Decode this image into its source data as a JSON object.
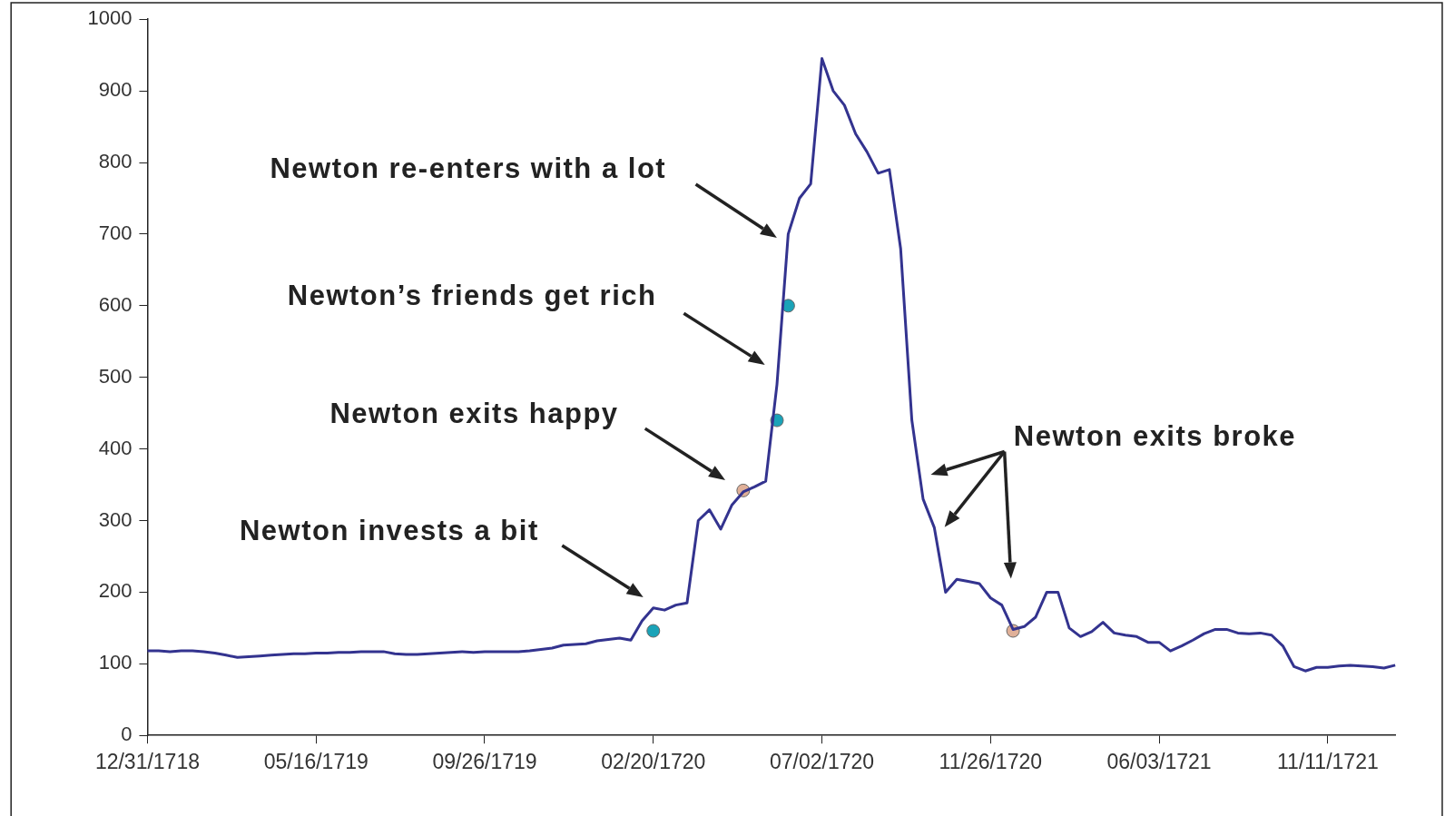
{
  "chart_data": {
    "type": "line",
    "categories": [
      "12/31/1718",
      null,
      null,
      null,
      null,
      null,
      null,
      null,
      null,
      null,
      null,
      null,
      null,
      null,
      null,
      "05/16/1719",
      null,
      null,
      null,
      null,
      null,
      null,
      null,
      null,
      null,
      null,
      null,
      null,
      null,
      null,
      "09/26/1719",
      null,
      null,
      null,
      null,
      null,
      null,
      null,
      null,
      null,
      null,
      null,
      null,
      null,
      null,
      "02/20/1720",
      null,
      null,
      null,
      null,
      null,
      null,
      null,
      null,
      null,
      null,
      null,
      null,
      null,
      null,
      "07/02/1720",
      null,
      null,
      null,
      null,
      null,
      null,
      null,
      null,
      null,
      null,
      null,
      null,
      null,
      null,
      "11/26/1720",
      null,
      null,
      null,
      null,
      null,
      null,
      null,
      null,
      null,
      null,
      null,
      null,
      null,
      null,
      "06/03/1721",
      null,
      null,
      null,
      null,
      null,
      null,
      null,
      null,
      null,
      null,
      null,
      null,
      null,
      null,
      "11/11/1721",
      null,
      null,
      null,
      null,
      null,
      null
    ],
    "series": [
      {
        "color": "#33338f",
        "values": [
          118,
          118,
          117,
          118,
          118,
          117,
          115,
          112,
          109,
          110,
          111,
          112,
          113,
          114,
          114,
          115,
          115,
          116,
          116,
          117,
          117,
          117,
          114,
          113,
          113,
          114,
          115,
          116,
          117,
          116,
          117,
          117,
          117,
          117,
          118,
          120,
          122,
          126,
          127,
          128,
          132,
          134,
          136,
          133,
          160,
          178,
          175,
          182,
          185,
          300,
          315,
          288,
          322,
          340,
          347,
          355,
          490,
          700,
          750,
          770,
          945,
          900,
          880,
          840,
          815,
          785,
          790,
          680,
          440,
          330,
          290,
          200,
          218,
          215,
          212,
          192,
          182,
          148,
          152,
          165,
          200,
          200,
          150,
          138,
          145,
          158,
          143,
          140,
          138,
          130,
          130,
          118,
          125,
          133,
          142,
          148,
          148,
          143,
          142,
          143,
          140,
          125,
          96,
          90,
          95,
          95,
          97,
          98,
          97,
          96,
          94,
          98
        ]
      },
      {
        "type": "scatter",
        "color": "#1aa3b8",
        "values": [
          null,
          null,
          null,
          null,
          null,
          null,
          null,
          null,
          null,
          null,
          null,
          null,
          null,
          null,
          null,
          null,
          null,
          null,
          null,
          null,
          null,
          null,
          null,
          null,
          null,
          null,
          null,
          null,
          null,
          null,
          null,
          null,
          null,
          null,
          null,
          null,
          null,
          null,
          null,
          null,
          null,
          null,
          null,
          null,
          null,
          146,
          null,
          null,
          null,
          null,
          null,
          null,
          null,
          null,
          null,
          null,
          440,
          600,
          null,
          null,
          null,
          null,
          null,
          null,
          null,
          null,
          null,
          null,
          null,
          null,
          null,
          null,
          null,
          null,
          null,
          null,
          null,
          null,
          null,
          null,
          null,
          null,
          null,
          null,
          null,
          null,
          null,
          null,
          null,
          null,
          null,
          null,
          null,
          null,
          null,
          null,
          null,
          null,
          null,
          null,
          null,
          null,
          null,
          null,
          null,
          null,
          null,
          null,
          null,
          null,
          null,
          null
        ]
      },
      {
        "type": "scatter",
        "color": "#e0b098",
        "values": [
          null,
          null,
          null,
          null,
          null,
          null,
          null,
          null,
          null,
          null,
          null,
          null,
          null,
          null,
          null,
          null,
          null,
          null,
          null,
          null,
          null,
          null,
          null,
          null,
          null,
          null,
          null,
          null,
          null,
          null,
          null,
          null,
          null,
          null,
          null,
          null,
          null,
          null,
          null,
          null,
          null,
          null,
          null,
          null,
          null,
          null,
          null,
          null,
          null,
          null,
          null,
          null,
          null,
          342,
          null,
          null,
          null,
          null,
          null,
          null,
          null,
          null,
          null,
          null,
          null,
          null,
          null,
          null,
          null,
          null,
          null,
          null,
          null,
          null,
          null,
          null,
          null,
          146,
          null,
          null,
          null,
          null,
          null,
          null,
          null,
          null,
          null,
          null,
          null,
          null,
          null,
          null,
          null,
          null,
          null,
          null,
          null,
          null,
          null,
          null,
          null,
          null,
          null,
          null,
          null,
          null,
          null,
          null,
          null,
          null,
          null,
          null
        ]
      }
    ],
    "ylim": [
      0,
      1000
    ],
    "yticks": [
      0,
      100,
      200,
      300,
      400,
      500,
      600,
      700,
      800,
      900,
      1000
    ],
    "annotations": [
      "Newton re-enters with a lot",
      "Newton’s friends get rich",
      "Newton exits happy",
      "Newton invests a bit",
      "Newton exits broke"
    ]
  }
}
